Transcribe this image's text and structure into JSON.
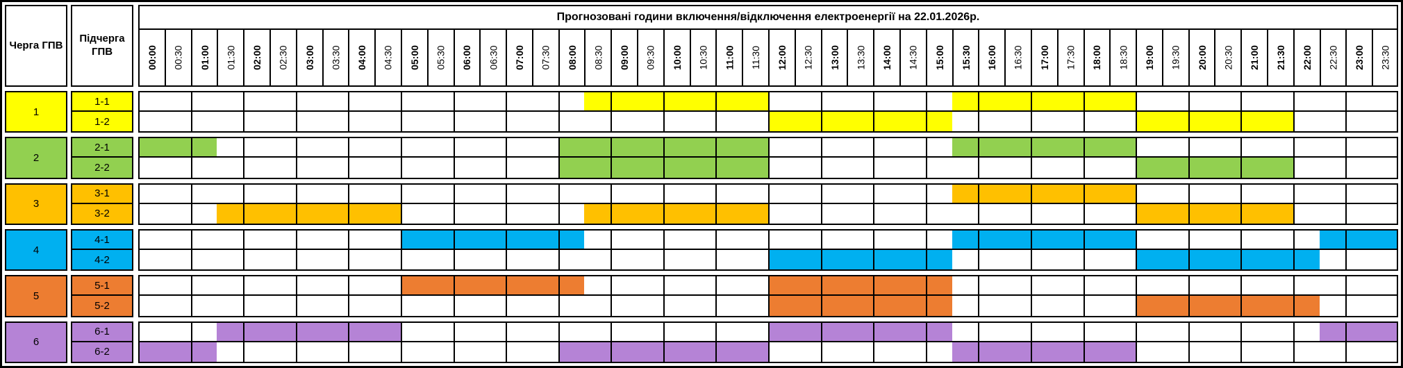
{
  "chart_data": {
    "type": "table",
    "title": "Прогнозовані години включення/відключення електроенергії на 22.01.2026р.",
    "columns": {
      "queue_header": "Черга ГПВ",
      "subqueue_header": "Підчерга ГПВ"
    },
    "time_slots": [
      "00:00",
      "00:30",
      "01:00",
      "01:30",
      "02:00",
      "02:30",
      "03:00",
      "03:30",
      "04:00",
      "04:30",
      "05:00",
      "05:30",
      "06:00",
      "06:30",
      "07:00",
      "07:30",
      "08:00",
      "08:30",
      "09:00",
      "09:30",
      "10:00",
      "10:30",
      "11:00",
      "11:30",
      "12:00",
      "12:30",
      "13:00",
      "13:30",
      "14:00",
      "14:30",
      "15:00",
      "15:30",
      "16:00",
      "16:30",
      "17:00",
      "17:30",
      "18:00",
      "18:30",
      "19:00",
      "19:30",
      "20:00",
      "20:30",
      "21:00",
      "21:30",
      "22:00",
      "22:30",
      "23:00",
      "23:30"
    ],
    "bold_time_labels": [
      "00:00",
      "01:00",
      "02:00",
      "03:00",
      "04:00",
      "05:00",
      "06:00",
      "07:00",
      "08:00",
      "09:00",
      "10:00",
      "11:00",
      "12:00",
      "13:00",
      "14:00",
      "15:00",
      "15:30",
      "16:00",
      "17:00",
      "18:00",
      "19:00",
      "20:00",
      "21:00",
      "21:30",
      "22:00",
      "23:00"
    ],
    "queues": [
      {
        "label": "1",
        "color": "#FFFF00",
        "rows": [
          {
            "label": "1-1",
            "off_intervals": [
              [
                "08:30",
                "12:00"
              ],
              [
                "15:30",
                "19:00"
              ]
            ]
          },
          {
            "label": "1-2",
            "off_intervals": [
              [
                "12:00",
                "15:30"
              ],
              [
                "19:00",
                "22:00"
              ]
            ]
          }
        ]
      },
      {
        "label": "2",
        "color": "#92D050",
        "rows": [
          {
            "label": "2-1",
            "off_intervals": [
              [
                "00:00",
                "01:30"
              ],
              [
                "08:00",
                "12:00"
              ],
              [
                "15:30",
                "19:00"
              ]
            ]
          },
          {
            "label": "2-2",
            "off_intervals": [
              [
                "08:00",
                "12:00"
              ],
              [
                "19:00",
                "22:00"
              ]
            ]
          }
        ]
      },
      {
        "label": "3",
        "color": "#FFC000",
        "rows": [
          {
            "label": "3-1",
            "off_intervals": [
              [
                "15:30",
                "19:00"
              ]
            ]
          },
          {
            "label": "3-2",
            "off_intervals": [
              [
                "01:30",
                "05:00"
              ],
              [
                "08:30",
                "12:00"
              ],
              [
                "19:00",
                "22:00"
              ]
            ]
          }
        ]
      },
      {
        "label": "4",
        "color": "#00B0F0",
        "rows": [
          {
            "label": "4-1",
            "off_intervals": [
              [
                "05:00",
                "08:30"
              ],
              [
                "15:30",
                "19:00"
              ],
              [
                "22:30",
                "24:00"
              ]
            ]
          },
          {
            "label": "4-2",
            "off_intervals": [
              [
                "12:00",
                "15:30"
              ],
              [
                "19:00",
                "22:30"
              ]
            ]
          }
        ]
      },
      {
        "label": "5",
        "color": "#ED7D31",
        "rows": [
          {
            "label": "5-1",
            "off_intervals": [
              [
                "05:00",
                "08:30"
              ],
              [
                "12:00",
                "15:30"
              ]
            ]
          },
          {
            "label": "5-2",
            "off_intervals": [
              [
                "12:00",
                "15:30"
              ],
              [
                "19:00",
                "22:30"
              ]
            ]
          }
        ]
      },
      {
        "label": "6",
        "color": "#B583D6",
        "rows": [
          {
            "label": "6-1",
            "off_intervals": [
              [
                "01:30",
                "05:00"
              ],
              [
                "12:00",
                "15:30"
              ],
              [
                "22:30",
                "24:00"
              ]
            ]
          },
          {
            "label": "6-2",
            "off_intervals": [
              [
                "00:00",
                "01:30"
              ],
              [
                "08:00",
                "12:00"
              ],
              [
                "15:30",
                "19:00"
              ]
            ]
          }
        ]
      }
    ]
  },
  "colors": {
    "grid_line": "#000000",
    "background": "#FFFFFF"
  }
}
